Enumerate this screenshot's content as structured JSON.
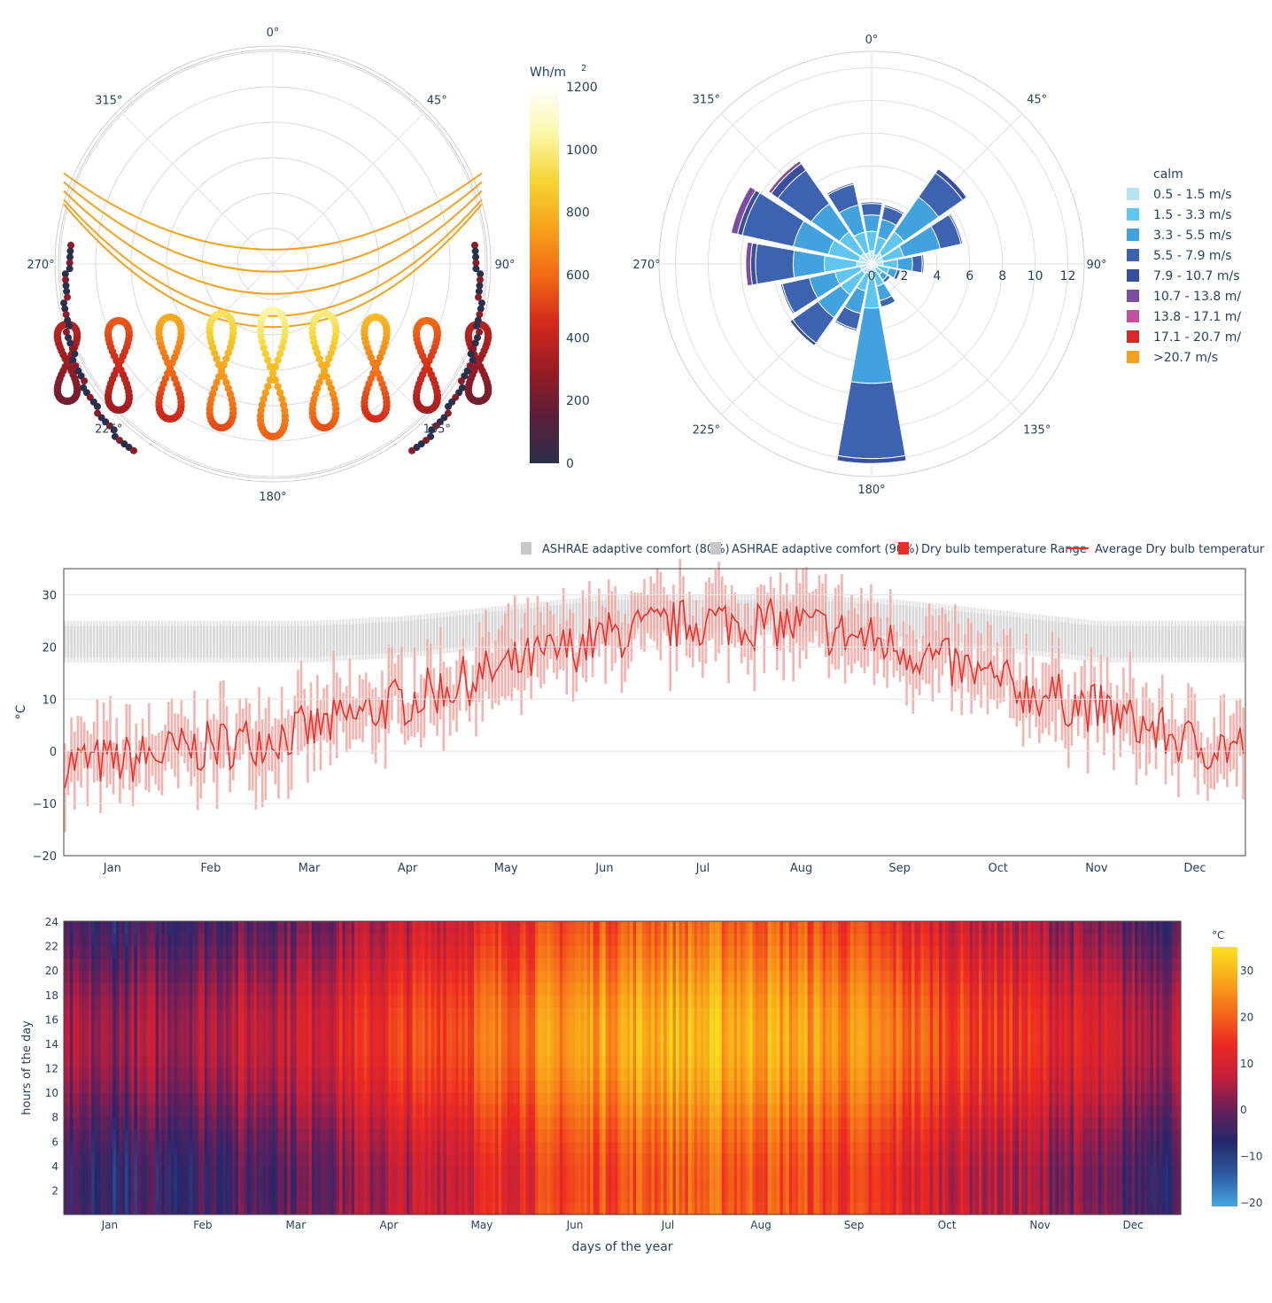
{
  "sunpath": {
    "angle_labels": [
      "0°",
      "45°",
      "90°",
      "135°",
      "180°",
      "225°",
      "270°",
      "315°"
    ],
    "colorbar": {
      "title": "Wh/m",
      "title_sup": "2",
      "ticks": [
        "0",
        "200",
        "400",
        "600",
        "800",
        "1000",
        "1200"
      ],
      "range": [
        0,
        1200
      ],
      "colors": [
        "#2b2f4a",
        "#5a1f3a",
        "#9a1c22",
        "#d42a1c",
        "#f26a14",
        "#f7a21a",
        "#f6d532",
        "#fbf8a8",
        "#ffffff"
      ]
    },
    "path_color": "#f5a21e"
  },
  "windrose": {
    "angle_labels": [
      "0°",
      "45°",
      "90°",
      "135°",
      "180°",
      "225°",
      "270°",
      "315°"
    ],
    "radial_ticks": [
      "0",
      "2",
      "4",
      "6",
      "8",
      "10",
      "12"
    ],
    "legend": [
      {
        "label": "calm",
        "color": ""
      },
      {
        "label": "0.5 - 1.5 m/s",
        "color": "#b9e2f5"
      },
      {
        "label": "1.5 - 3.3 m/s",
        "color": "#5ec6ef"
      },
      {
        "label": "3.3 - 5.5 m/s",
        "color": "#41a2dd"
      },
      {
        "label": "5.5 - 7.9 m/s",
        "color": "#3d63b0"
      },
      {
        "label": "7.9 - 10.7 m/s",
        "color": "#3a4e9f"
      },
      {
        "label": "10.7 - 13.8 m/",
        "color": "#7b4da0"
      },
      {
        "label": "13.8 - 17.1 m/",
        "color": "#c150a0"
      },
      {
        "label": "17.1 - 20.7 m/",
        "color": "#d62a2a"
      },
      {
        "label": ">20.7 m/s",
        "color": "#f4a21e"
      }
    ]
  },
  "temperature": {
    "legend": [
      {
        "label": "ASHRAE adaptive comfort (80%)",
        "color": "#c8c8c8",
        "kind": "box"
      },
      {
        "label": "ASHRAE adaptive comfort (90%)",
        "color": "#c8c8c8",
        "kind": "box"
      },
      {
        "label": "Dry bulb temperature Range",
        "color": "#e8302a",
        "kind": "box"
      },
      {
        "label": "Average Dry bulb temperatur",
        "color": "#e8302a",
        "kind": "line"
      }
    ],
    "ylabel": "°C",
    "yticks": [
      "30",
      "20",
      "10",
      "0",
      "−10",
      "−20"
    ],
    "months": [
      "Jan",
      "Feb",
      "Mar",
      "Apr",
      "May",
      "Jun",
      "Jul",
      "Aug",
      "Sep",
      "Oct",
      "Nov",
      "Dec"
    ]
  },
  "heatmap": {
    "ylabel": "hours of the day",
    "xlabel": "days of the year",
    "yticks": [
      "24",
      "22",
      "20",
      "18",
      "16",
      "14",
      "12",
      "10",
      "8",
      "6",
      "4",
      "2"
    ],
    "months": [
      "Jan",
      "Feb",
      "Mar",
      "Apr",
      "May",
      "Jun",
      "Jul",
      "Aug",
      "Sep",
      "Oct",
      "Nov",
      "Dec"
    ],
    "colorbar": {
      "title": "°C",
      "ticks": [
        "30",
        "20",
        "10",
        "0",
        "−10",
        "−20"
      ],
      "range": [
        -21,
        35
      ],
      "colors": [
        "#45a8e0",
        "#2d5aa0",
        "#25276a",
        "#6a1f5a",
        "#c51f3a",
        "#ec2a22",
        "#f56a1a",
        "#f9a81a",
        "#fbe321"
      ]
    }
  },
  "chart_data": [
    {
      "type": "scatter",
      "title": "",
      "description_key": "sun path (polar)",
      "value_label": "Wh/m2",
      "hours_drawn": [
        8,
        9,
        10,
        11,
        12,
        13,
        14,
        15,
        16
      ],
      "peak_by_hour": [
        380,
        560,
        780,
        960,
        1050,
        1000,
        820,
        600,
        380
      ],
      "range": [
        0,
        1200
      ]
    },
    {
      "type": "bar",
      "description_key": "wind rose (polar, stacked frequency %)",
      "directions_deg": [
        0,
        22.5,
        45,
        67.5,
        90,
        112.5,
        135,
        157.5,
        180,
        202.5,
        225,
        247.5,
        270,
        292.5,
        315,
        337.5
      ],
      "bin_colors": [
        "#b9e2f5",
        "#5ec6ef",
        "#41a2dd",
        "#3d63b0",
        "#3a4e9f",
        "#7b4da0",
        "#c150a0"
      ],
      "series": [
        {
          "bin": "0.5 - 1.5 m/s",
          "values": [
            0.8,
            0.6,
            0.8,
            0.7,
            0.7,
            0.4,
            0.3,
            0.5,
            0.9,
            0.6,
            0.7,
            0.7,
            0.9,
            0.8,
            0.8,
            0.7
          ]
        },
        {
          "bin": "1.5 - 3.3 m/s",
          "values": [
            1.2,
            1.1,
            1.6,
            1.3,
            0.9,
            0.7,
            0.5,
            0.9,
            1.8,
            1.1,
            1.6,
            1.6,
            2.0,
            1.9,
            1.6,
            1.3
          ]
        },
        {
          "bin": "3.3 - 5.5 m/s",
          "values": [
            1.0,
            1.1,
            2.6,
            2.3,
            0.9,
            0.5,
            0.4,
            0.9,
            4.6,
            1.4,
            1.7,
            1.6,
            1.9,
            2.2,
            2.1,
            1.7
          ]
        },
        {
          "bin": "5.5 - 7.9 m/s",
          "values": [
            0.7,
            0.8,
            1.8,
            1.3,
            0.6,
            0.2,
            0.2,
            0.4,
            4.6,
            1.0,
            1.9,
            1.7,
            2.3,
            3.2,
            2.5,
            1.3
          ]
        },
        {
          "bin": "7.9 - 10.7 m/s",
          "values": [
            0.1,
            0.1,
            0.3,
            0.1,
            0.1,
            0.0,
            0.0,
            0.0,
            0.3,
            0.1,
            0.2,
            0.1,
            0.3,
            0.3,
            0.5,
            0.1
          ]
        },
        {
          "bin": "10.7 - 13.8 m/",
          "values": [
            0,
            0,
            0,
            0,
            0,
            0,
            0,
            0,
            0,
            0,
            0,
            0,
            0.3,
            0.4,
            0.2,
            0
          ]
        },
        {
          "bin": "13.8 - 17.1 m/",
          "values": [
            0,
            0,
            0,
            0,
            0,
            0,
            0,
            0,
            0,
            0,
            0,
            0,
            0,
            0,
            0,
            0
          ]
        }
      ],
      "r_range": [
        0,
        13
      ]
    },
    {
      "type": "line",
      "title": "",
      "xlabel": "",
      "ylabel": "°C",
      "ylim": [
        -20,
        35
      ],
      "months": [
        "Jan",
        "Feb",
        "Mar",
        "Apr",
        "May",
        "Jun",
        "Jul",
        "Aug",
        "Sep",
        "Oct",
        "Nov",
        "Dec"
      ],
      "monthly_avg_drybulb": [
        -2,
        1,
        4,
        10,
        16,
        22,
        25,
        24,
        20,
        13,
        8,
        1
      ],
      "comfort_80_band": [
        [
          17,
          25
        ],
        [
          17,
          25
        ],
        [
          17,
          25
        ],
        [
          18,
          26
        ],
        [
          20,
          28
        ],
        [
          22,
          30
        ],
        [
          23,
          30
        ],
        [
          22,
          30
        ],
        [
          21,
          29
        ],
        [
          19,
          27
        ],
        [
          17,
          25
        ],
        [
          17,
          25
        ]
      ],
      "comfort_90_band": [
        [
          18,
          24
        ],
        [
          18,
          24
        ],
        [
          18,
          24
        ],
        [
          19,
          25
        ],
        [
          21,
          27
        ],
        [
          23,
          29
        ],
        [
          24,
          29
        ],
        [
          23,
          29
        ],
        [
          22,
          28
        ],
        [
          20,
          26
        ],
        [
          18,
          24
        ],
        [
          18,
          24
        ]
      ]
    },
    {
      "type": "heatmap",
      "xlabel": "days of the year",
      "ylabel": "hours of the day",
      "months": [
        "Jan",
        "Feb",
        "Mar",
        "Apr",
        "May",
        "Jun",
        "Jul",
        "Aug",
        "Sep",
        "Oct",
        "Nov",
        "Dec"
      ],
      "monthly_avg_temp": [
        -2,
        1,
        4,
        10,
        16,
        22,
        25,
        24,
        20,
        13,
        8,
        1
      ],
      "diurnal_amplitude": 5,
      "zlim": [
        -21,
        35
      ]
    }
  ]
}
